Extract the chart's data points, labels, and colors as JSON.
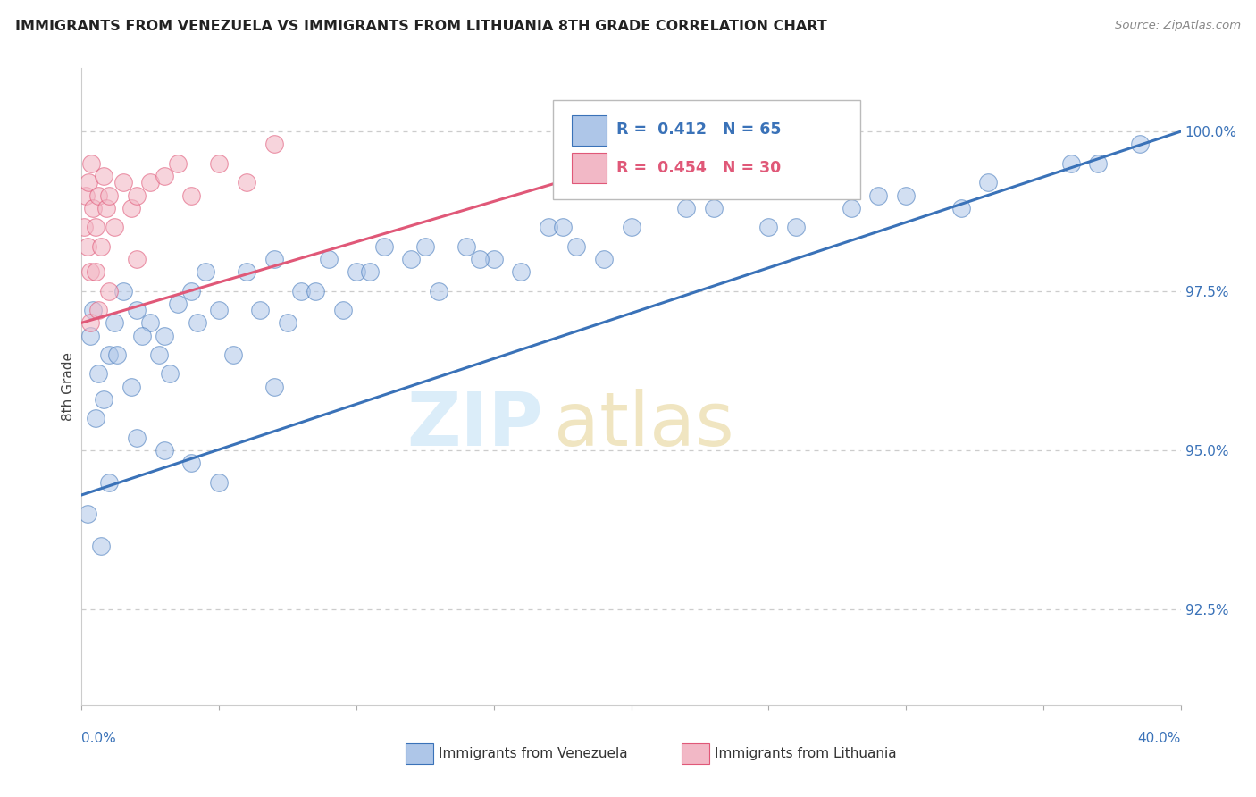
{
  "title": "IMMIGRANTS FROM VENEZUELA VS IMMIGRANTS FROM LITHUANIA 8TH GRADE CORRELATION CHART",
  "source": "Source: ZipAtlas.com",
  "ylabel": "8th Grade",
  "color_venezuela": "#aec6e8",
  "color_lithuania": "#f2b8c6",
  "color_line_venezuela": "#3a72b8",
  "color_line_lithuania": "#e05878",
  "xlim": [
    0.0,
    40.0
  ],
  "ylim": [
    91.0,
    101.0
  ],
  "yticks": [
    92.5,
    95.0,
    97.5,
    100.0
  ],
  "ven_trend": [
    0.0,
    40.0,
    94.3,
    100.0
  ],
  "lit_trend": [
    0.0,
    26.0,
    97.0,
    100.3
  ],
  "venezuela_x": [
    0.3,
    0.4,
    1.0,
    1.2,
    1.5,
    2.0,
    2.5,
    3.0,
    3.5,
    4.0,
    4.5,
    5.0,
    6.0,
    7.0,
    8.0,
    9.0,
    10.0,
    11.0,
    12.0,
    13.0,
    14.0,
    15.0,
    16.0,
    17.0,
    18.0,
    20.0,
    22.0,
    25.0,
    28.0,
    30.0,
    32.0,
    36.0,
    38.5,
    0.5,
    0.6,
    0.8,
    1.3,
    1.8,
    2.2,
    2.8,
    3.2,
    4.2,
    5.5,
    6.5,
    7.5,
    8.5,
    9.5,
    10.5,
    12.5,
    14.5,
    17.5,
    19.0,
    23.0,
    26.0,
    29.0,
    33.0,
    37.0,
    1.0,
    2.0,
    3.0,
    4.0,
    5.0,
    7.0,
    0.2,
    0.7
  ],
  "venezuela_y": [
    96.8,
    97.2,
    96.5,
    97.0,
    97.5,
    97.2,
    97.0,
    96.8,
    97.3,
    97.5,
    97.8,
    97.2,
    97.8,
    98.0,
    97.5,
    98.0,
    97.8,
    98.2,
    98.0,
    97.5,
    98.2,
    98.0,
    97.8,
    98.5,
    98.2,
    98.5,
    98.8,
    98.5,
    98.8,
    99.0,
    98.8,
    99.5,
    99.8,
    95.5,
    96.2,
    95.8,
    96.5,
    96.0,
    96.8,
    96.5,
    96.2,
    97.0,
    96.5,
    97.2,
    97.0,
    97.5,
    97.2,
    97.8,
    98.2,
    98.0,
    98.5,
    98.0,
    98.8,
    98.5,
    99.0,
    99.2,
    99.5,
    94.5,
    95.2,
    95.0,
    94.8,
    94.5,
    96.0,
    94.0,
    93.5
  ],
  "lithuania_x": [
    0.1,
    0.15,
    0.2,
    0.25,
    0.3,
    0.35,
    0.4,
    0.5,
    0.6,
    0.7,
    0.8,
    0.9,
    1.0,
    1.2,
    1.5,
    1.8,
    2.0,
    2.5,
    3.0,
    3.5,
    4.0,
    5.0,
    6.0,
    7.0,
    1.0,
    2.0,
    0.3,
    0.5,
    25.0,
    0.6
  ],
  "lithuania_y": [
    98.5,
    99.0,
    98.2,
    99.2,
    97.8,
    99.5,
    98.8,
    98.5,
    99.0,
    98.2,
    99.3,
    98.8,
    99.0,
    98.5,
    99.2,
    98.8,
    99.0,
    99.2,
    99.3,
    99.5,
    99.0,
    99.5,
    99.2,
    99.8,
    97.5,
    98.0,
    97.0,
    97.8,
    99.8,
    97.2
  ]
}
